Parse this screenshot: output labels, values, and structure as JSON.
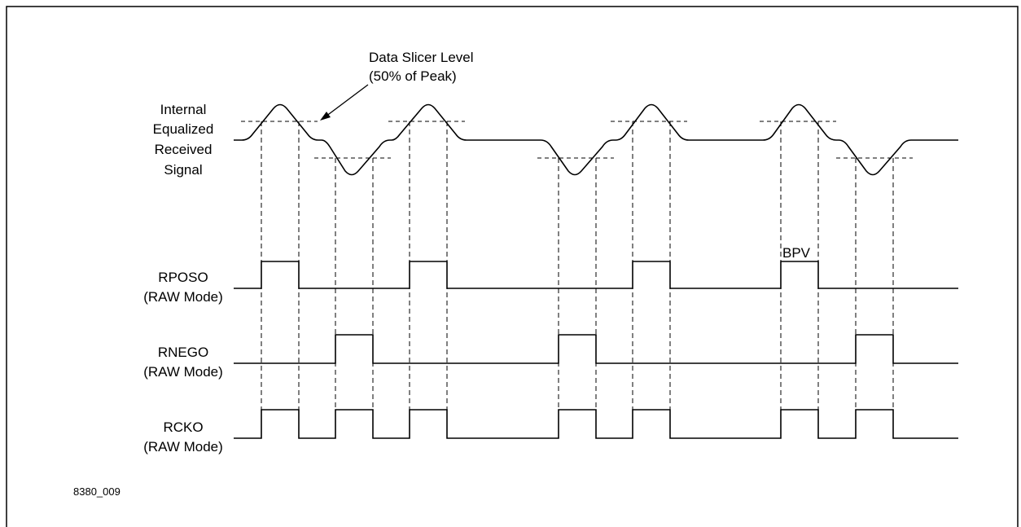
{
  "annotation": {
    "line1": "Data Slicer Level",
    "line2": "(50% of Peak)"
  },
  "signals": {
    "equalized": {
      "line1": "Internal",
      "line2": "Equalized",
      "line3": "Received",
      "line4": "Signal"
    },
    "rposo": {
      "name": "RPOSO",
      "mode": "(RAW Mode)"
    },
    "rnego": {
      "name": "RNEGO",
      "mode": "(RAW Mode)"
    },
    "rcko": {
      "name": "RCKO",
      "mode": "(RAW Mode)"
    }
  },
  "bpv_label": "BPV",
  "figure_id": "8380_009",
  "colors": {
    "line": "#000000",
    "background": "#ffffff"
  },
  "pulse_sequence": [
    "positive",
    "negative",
    "positive",
    "negative",
    "positive",
    "positive (BPV)",
    "negative"
  ]
}
